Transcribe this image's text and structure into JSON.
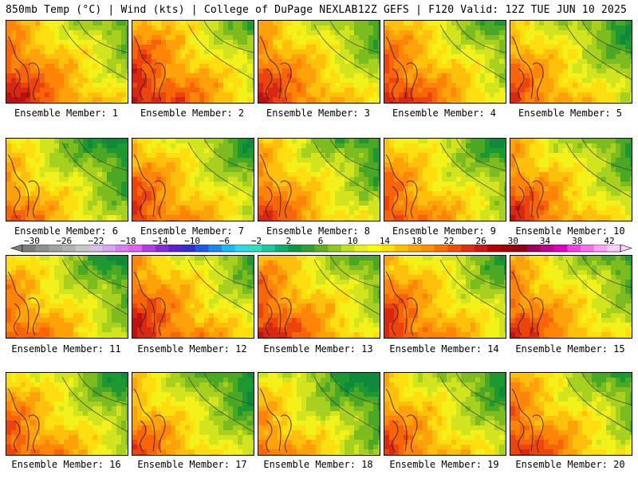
{
  "header": {
    "left": "850mb Temp (°C) | Wind (kts) | College of DuPage NEXLAB",
    "right": "12Z GEFS | F120 Valid: 12Z TUE JUN 10 2025"
  },
  "colorbar": {
    "ticks": [
      "-30",
      "-26",
      "-22",
      "-18",
      "-14",
      "-10",
      "-6",
      "-2",
      "2",
      "6",
      "10",
      "14",
      "18",
      "22",
      "26",
      "30",
      "34",
      "38",
      "42"
    ],
    "colors": [
      "#7b7f7b",
      "#8c918c",
      "#9ea39e",
      "#b0b4b0",
      "#c4c7c4",
      "#d8bfe8",
      "#d6a6f0",
      "#dc7ff5",
      "#e060f0",
      "#b040e0",
      "#8a2bd8",
      "#5a22d0",
      "#3030d0",
      "#2058e8",
      "#1a88f0",
      "#20b8f0",
      "#30d8e8",
      "#30e0c0",
      "#20c8a0",
      "#10b070",
      "#109840",
      "#30a030",
      "#60b020",
      "#90c820",
      "#c0e020",
      "#e8f020",
      "#ffff00",
      "#ffe000",
      "#ffc000",
      "#ffa800",
      "#ff9000",
      "#ff7000",
      "#f05000",
      "#e03010",
      "#d01818",
      "#b80000",
      "#a00000",
      "#900010",
      "#a00060",
      "#c00090",
      "#e000c0",
      "#f040e0",
      "#f870f0",
      "#fca0f8",
      "#ffd0ff"
    ]
  },
  "members": [
    {
      "label": "Ensemble Member: 1",
      "warmth": 0.62
    },
    {
      "label": "Ensemble Member: 2",
      "warmth": 0.66
    },
    {
      "label": "Ensemble Member: 3",
      "warmth": 0.58
    },
    {
      "label": "Ensemble Member: 4",
      "warmth": 0.6
    },
    {
      "label": "Ensemble Member: 5",
      "warmth": 0.5
    },
    {
      "label": "Ensemble Member: 6",
      "warmth": 0.42
    },
    {
      "label": "Ensemble Member: 7",
      "warmth": 0.55
    },
    {
      "label": "Ensemble Member: 8",
      "warmth": 0.5
    },
    {
      "label": "Ensemble Member: 9",
      "warmth": 0.52
    },
    {
      "label": "Ensemble Member: 10",
      "warmth": 0.55
    },
    {
      "label": "Ensemble Member: 11",
      "warmth": 0.48
    },
    {
      "label": "Ensemble Member: 12",
      "warmth": 0.62
    },
    {
      "label": "Ensemble Member: 13",
      "warmth": 0.6
    },
    {
      "label": "Ensemble Member: 14",
      "warmth": 0.58
    },
    {
      "label": "Ensemble Member: 15",
      "warmth": 0.55
    },
    {
      "label": "Ensemble Member: 16",
      "warmth": 0.52
    },
    {
      "label": "Ensemble Member: 17",
      "warmth": 0.45
    },
    {
      "label": "Ensemble Member: 18",
      "warmth": 0.4
    },
    {
      "label": "Ensemble Member: 19",
      "warmth": 0.5
    },
    {
      "label": "Ensemble Member: 20",
      "warmth": 0.56
    }
  ]
}
